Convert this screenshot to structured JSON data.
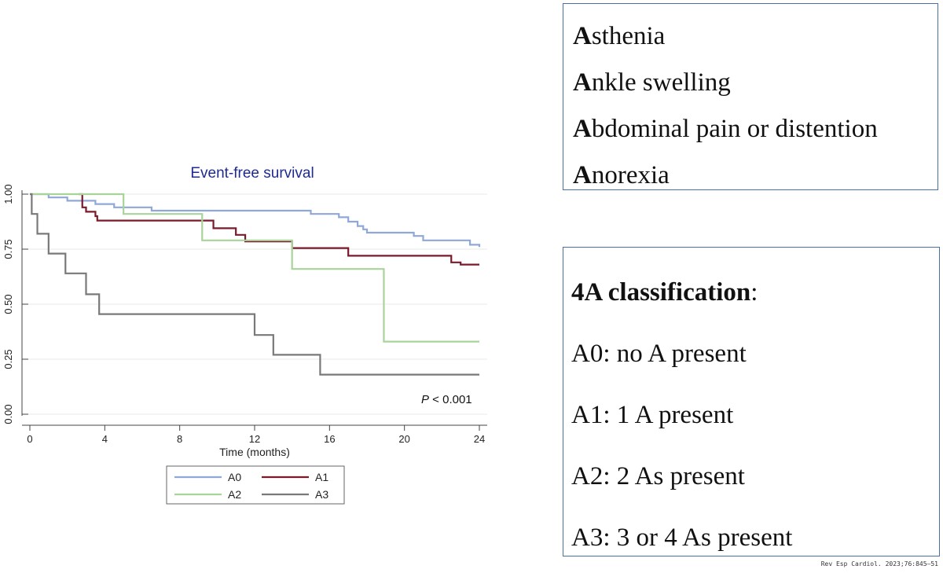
{
  "chart_data": {
    "type": "line",
    "step": true,
    "title": "Event-free survival",
    "xlabel": "Time (months)",
    "ylabel": "",
    "xlim": [
      0,
      24
    ],
    "ylim": [
      0,
      1
    ],
    "xticks": [
      "0",
      "4",
      "8",
      "12",
      "16",
      "20",
      "24"
    ],
    "yticks": [
      "0.00",
      "0.25",
      "0.50",
      "0.75",
      "1.00"
    ],
    "grid": true,
    "annotation": "P < 0.001",
    "legend_position": "bottom",
    "series": [
      {
        "name": "A0",
        "color": "#8fa8d8",
        "points": [
          [
            0,
            1.0
          ],
          [
            1,
            0.985
          ],
          [
            2,
            0.97
          ],
          [
            3.5,
            0.955
          ],
          [
            4.5,
            0.94
          ],
          [
            6.5,
            0.925
          ],
          [
            15,
            0.91
          ],
          [
            16.5,
            0.895
          ],
          [
            17,
            0.875
          ],
          [
            17.5,
            0.855
          ],
          [
            17.8,
            0.84
          ],
          [
            18,
            0.825
          ],
          [
            20.5,
            0.81
          ],
          [
            21,
            0.79
          ],
          [
            23.5,
            0.77
          ],
          [
            24,
            0.76
          ]
        ]
      },
      {
        "name": "A1",
        "color": "#7a1a2a",
        "points": [
          [
            2.6,
            1.0
          ],
          [
            2.8,
            0.94
          ],
          [
            3,
            0.92
          ],
          [
            3.5,
            0.9
          ],
          [
            3.6,
            0.88
          ],
          [
            9.8,
            0.845
          ],
          [
            11,
            0.815
          ],
          [
            11.5,
            0.785
          ],
          [
            14,
            0.755
          ],
          [
            17,
            0.72
          ],
          [
            22.5,
            0.69
          ],
          [
            23,
            0.68
          ],
          [
            24,
            0.68
          ]
        ]
      },
      {
        "name": "A2",
        "color": "#a8d49a",
        "points": [
          [
            0,
            1.0
          ],
          [
            5,
            0.91
          ],
          [
            9.2,
            0.79
          ],
          [
            14,
            0.66
          ],
          [
            18.9,
            0.33
          ],
          [
            24,
            0.33
          ]
        ]
      },
      {
        "name": "A3",
        "color": "#7a7878",
        "points": [
          [
            0,
            1.0
          ],
          [
            0.1,
            0.91
          ],
          [
            0.4,
            0.82
          ],
          [
            1,
            0.73
          ],
          [
            1.9,
            0.64
          ],
          [
            3,
            0.545
          ],
          [
            3.7,
            0.455
          ],
          [
            12,
            0.36
          ],
          [
            13,
            0.27
          ],
          [
            15.5,
            0.18
          ],
          [
            24,
            0.18
          ]
        ]
      }
    ]
  },
  "as_box": {
    "lines": [
      {
        "initial": "A",
        "rest": "sthenia"
      },
      {
        "initial": "A",
        "rest": "nkle swelling"
      },
      {
        "initial": "A",
        "rest": "bdominal pain or distention"
      },
      {
        "initial": "A",
        "rest": "norexia"
      }
    ]
  },
  "classification_box": {
    "heading": "4A classification",
    "heading_suffix": ":",
    "lines": [
      "A0: no A present",
      "A1: 1 A present",
      "A2: 2 As present",
      "A3: 3 or 4 As present"
    ]
  },
  "citation": "Rev Esp Cardiol. 2023;76:845–51"
}
